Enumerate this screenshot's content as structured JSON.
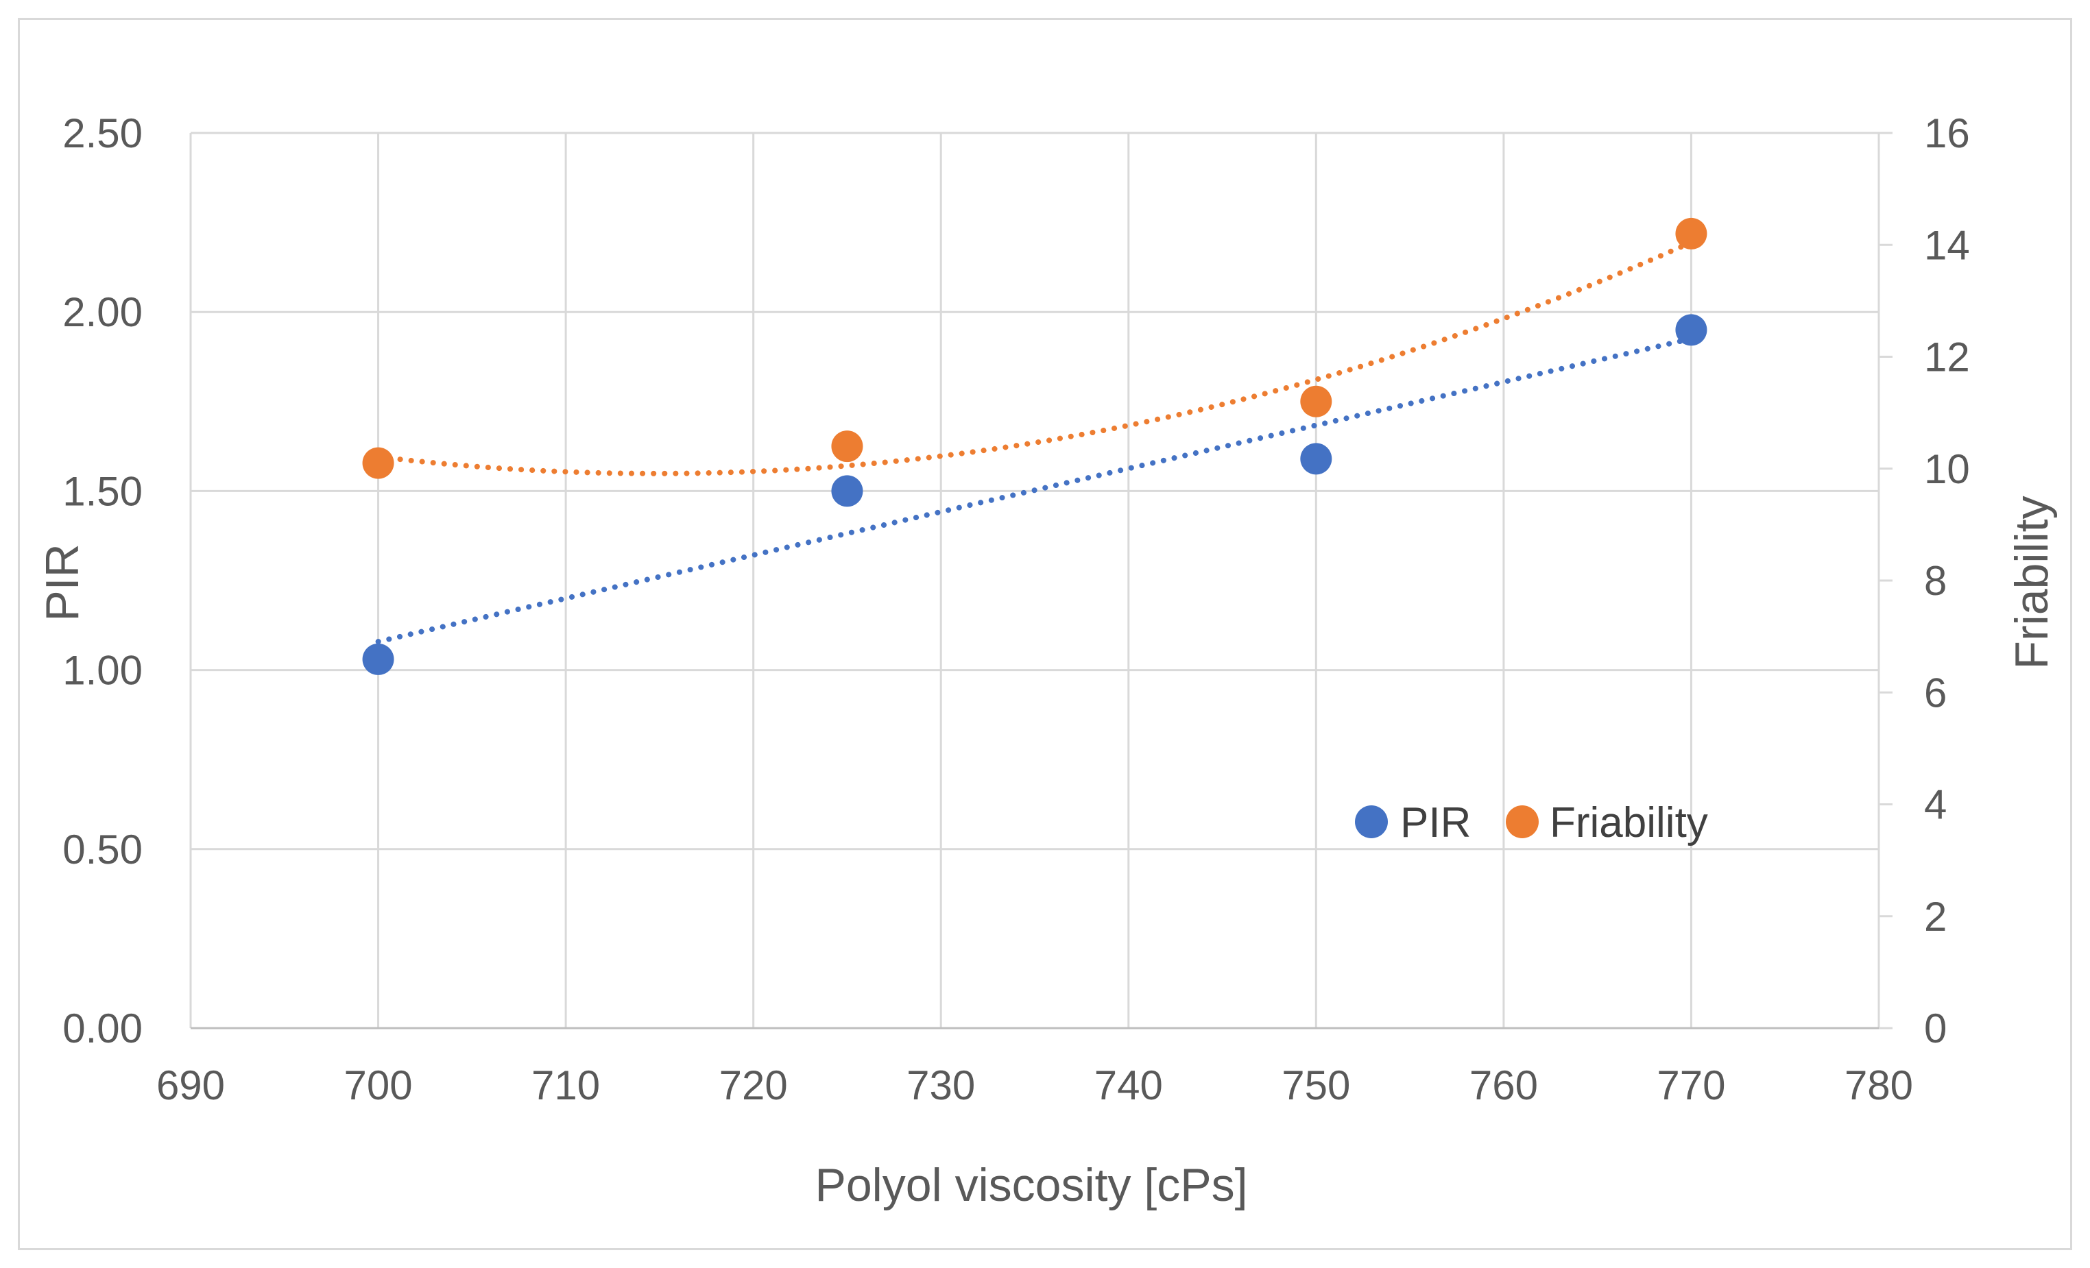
{
  "chart_data": {
    "type": "scatter",
    "title": "",
    "xlabel": "Polyol viscosity [cPs]",
    "ylabel": "PIR",
    "y2label": "Friability",
    "xlim": [
      690,
      780
    ],
    "ylim": [
      0,
      2.5
    ],
    "y2lim": [
      0,
      16
    ],
    "x_ticks": [
      "690",
      "700",
      "710",
      "720",
      "730",
      "740",
      "750",
      "760",
      "770",
      "780"
    ],
    "y_ticks": [
      "0.00",
      "0.50",
      "1.00",
      "1.50",
      "2.00",
      "2.50"
    ],
    "y2_ticks": [
      "0",
      "2",
      "4",
      "6",
      "8",
      "10",
      "12",
      "14",
      "16"
    ],
    "grid": true,
    "legend_position": "bottom-right",
    "series": [
      {
        "name": "PIR",
        "axis": "left",
        "color": "#4472c4",
        "x": [
          700,
          725,
          750,
          770
        ],
        "y": [
          1.03,
          1.5,
          1.59,
          1.95
        ],
        "trendline": "linear"
      },
      {
        "name": "Friability",
        "axis": "right",
        "color": "#ed7d31",
        "x": [
          700,
          725,
          750,
          770
        ],
        "y": [
          10.1,
          10.4,
          11.2,
          14.2
        ],
        "trendline": "polynomial-2"
      }
    ]
  }
}
